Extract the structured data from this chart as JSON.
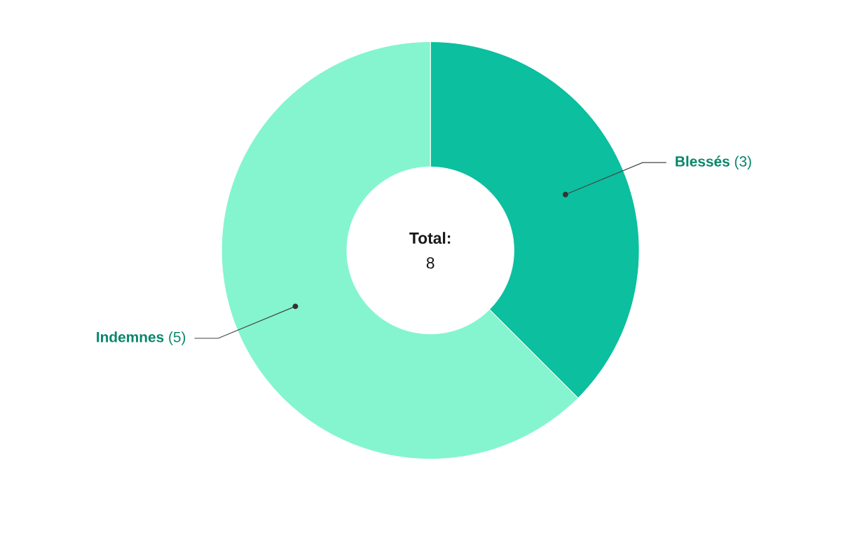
{
  "chart_data": {
    "type": "donut",
    "categories": [
      "Blessés",
      "Indemnes"
    ],
    "values": [
      3,
      5
    ],
    "colors": [
      "#0bbf9f",
      "#84f5cf"
    ],
    "value_labels": [
      "(3)",
      "(5)"
    ],
    "annotations": [
      "Total:",
      "8"
    ]
  }
}
